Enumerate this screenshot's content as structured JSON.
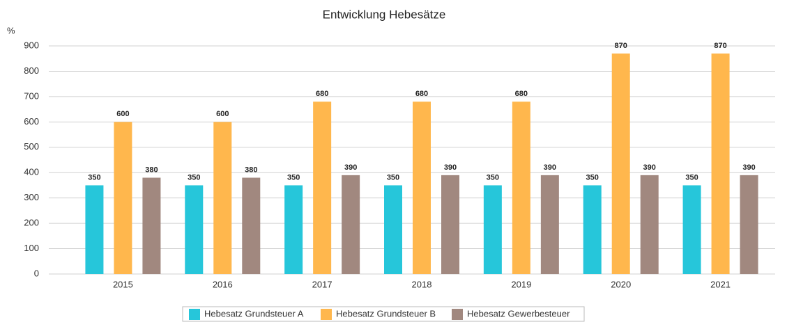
{
  "chart_data": {
    "type": "bar",
    "title": "Entwicklung Hebesätze",
    "y_label": "%",
    "categories": [
      "2015",
      "2016",
      "2017",
      "2018",
      "2019",
      "2020",
      "2021"
    ],
    "series": [
      {
        "name": "Hebesatz Grundsteuer A",
        "color": "#26c6da",
        "values": [
          350,
          350,
          350,
          350,
          350,
          350,
          350
        ]
      },
      {
        "name": "Hebesatz Grundsteuer B",
        "color": "#ffb74d",
        "values": [
          600,
          600,
          680,
          680,
          680,
          870,
          870
        ]
      },
      {
        "name": "Hebesatz Gewerbesteuer",
        "color": "#a1887f",
        "values": [
          380,
          380,
          390,
          390,
          390,
          390,
          390
        ]
      }
    ],
    "ylim": [
      0,
      900
    ],
    "yticks": [
      0,
      100,
      200,
      300,
      400,
      500,
      600,
      700,
      800,
      900
    ],
    "grid": true,
    "legend": "bottom"
  }
}
